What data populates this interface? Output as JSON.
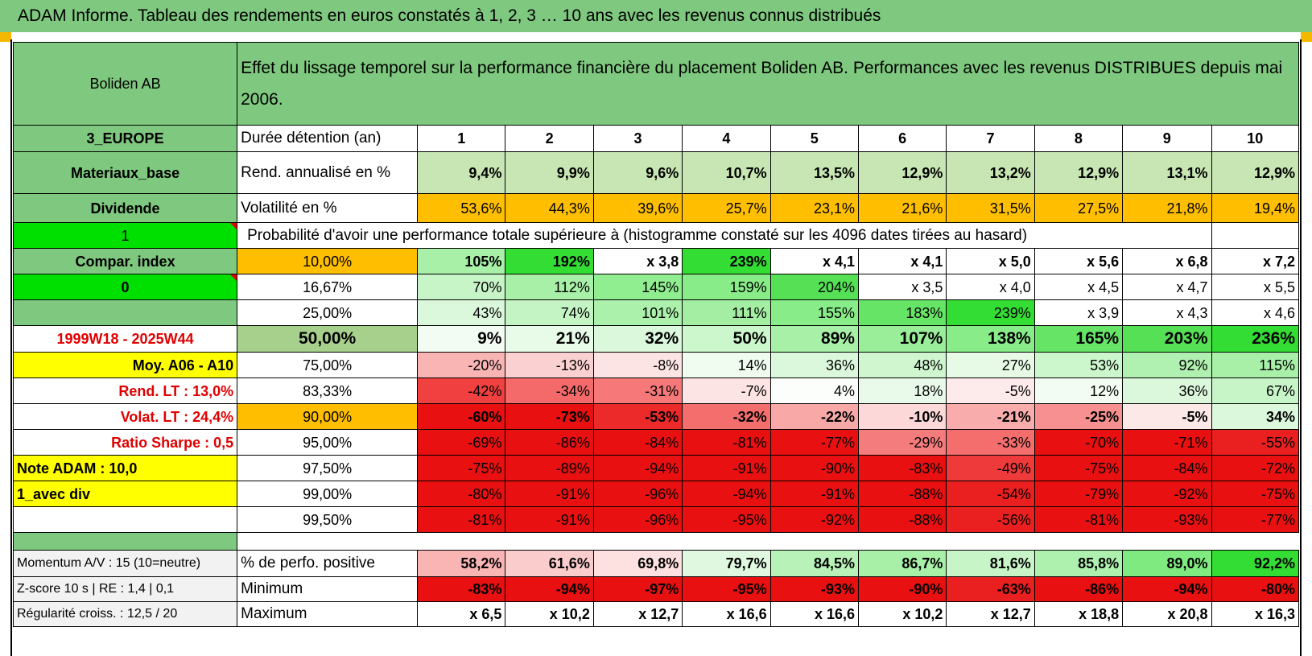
{
  "page": {
    "title": "ADAM Informe. Tableau des rendements en euros constatés à 1, 2, 3 … 10 ans avec les revenus connus distribués"
  },
  "header": {
    "name": "Boliden AB",
    "desc": "Effet du lissage temporel sur la performance financière du placement Boliden AB. Performances avec les revenus DISTRIBUES depuis mai 2006."
  },
  "colors": {
    "header_green": "#7fc87f",
    "bright_green": "#00e000",
    "yellow": "#ffff00",
    "orange": "#ffbf00",
    "red_text": "#e00000"
  },
  "sidebar": {
    "zone": "3_EUROPE",
    "sector": "Materiaux_base",
    "type": "Dividende",
    "v1": "1",
    "compar": "Compar. index",
    "v0": "0",
    "period": "1999W18 - 2025W44",
    "moy": "Moy. A06 - A10",
    "rend_lt": "Rend. LT :    13,0%",
    "volat_lt": "Volat. LT :    24,4%",
    "sharpe": "Ratio Sharpe :    0,5",
    "note": "Note ADAM : 10,0",
    "avec_div": "1_avec div"
  },
  "rows": {
    "duree_label": "Durée détention (an)",
    "years": [
      "1",
      "2",
      "3",
      "4",
      "5",
      "6",
      "7",
      "8",
      "9",
      "10"
    ],
    "rend_label": "Rend. annualisé en %",
    "rend": [
      "9,4%",
      "9,9%",
      "9,6%",
      "10,7%",
      "13,5%",
      "12,9%",
      "13,2%",
      "12,9%",
      "13,1%",
      "12,9%"
    ],
    "vol_label": "Volatilité en %",
    "vol": [
      "53,6%",
      "44,3%",
      "39,6%",
      "25,7%",
      "23,1%",
      "21,6%",
      "31,5%",
      "27,5%",
      "21,8%",
      "19,4%"
    ],
    "proba_title": "Probabilité d'avoir une performance totale supérieure à (histogramme constaté sur les 4096 dates tirées au hasard)"
  },
  "prob_rows": [
    {
      "pct": "10,00%",
      "vals": [
        "105%",
        "192%",
        "x 3,8",
        "239%",
        "x 4,1",
        "x 4,1",
        "x 5,0",
        "x 5,6",
        "x 6,8",
        "x 7,2"
      ],
      "bg": [
        "#a8f0a8",
        "#33dd33",
        "#ffffff",
        "#33dd33",
        "#ffffff",
        "#ffffff",
        "#ffffff",
        "#ffffff",
        "#ffffff",
        "#ffffff"
      ]
    },
    {
      "pct": "16,67%",
      "vals": [
        "70%",
        "112%",
        "145%",
        "159%",
        "204%",
        "x 3,5",
        "x 4,0",
        "x 4,5",
        "x 4,7",
        "x 5,5"
      ],
      "bg": [
        "#c8f5c8",
        "#a8f0a8",
        "#90ee90",
        "#88ec88",
        "#55e055",
        "#ffffff",
        "#ffffff",
        "#ffffff",
        "#ffffff",
        "#ffffff"
      ]
    },
    {
      "pct": "25,00%",
      "vals": [
        "43%",
        "74%",
        "101%",
        "111%",
        "155%",
        "183%",
        "239%",
        "x 3,9",
        "x 4,3",
        "x 4,6"
      ],
      "bg": [
        "#dcf8dc",
        "#c4f4c4",
        "#abf0ab",
        "#a3ee a3",
        "#88ec88",
        "#66e466",
        "#33dd33",
        "#ffffff",
        "#ffffff",
        "#ffffff"
      ]
    },
    {
      "pct": "50,00%",
      "vals": [
        "9%",
        "21%",
        "32%",
        "50%",
        "89%",
        "107%",
        "138%",
        "165%",
        "203%",
        "236%"
      ],
      "bg": [
        "#f2fcf2",
        "#e8fae8",
        "#dcf8dc",
        "#ccf6cc",
        "#a8f0a8",
        "#9aee9a",
        "#88ec88",
        "#66e466",
        "#55e055",
        "#33dd33"
      ]
    },
    {
      "pct": "75,00%",
      "vals": [
        "-20%",
        "-13%",
        "-8%",
        "14%",
        "36%",
        "48%",
        "27%",
        "53%",
        "92%",
        "115%"
      ],
      "bg": [
        "#f9b4b4",
        "#fbd0d0",
        "#fde4e4",
        "#f0fcf0",
        "#dcf8dc",
        "#d0f6d0",
        "#e6fae6",
        "#ccf6cc",
        "#b0f0b0",
        "#a8f0a8"
      ]
    },
    {
      "pct": "83,33%",
      "vals": [
        "-42%",
        "-34%",
        "-31%",
        "-7%",
        "4%",
        "18%",
        "-5%",
        "12%",
        "36%",
        "67%"
      ],
      "bg": [
        "#f04040",
        "#f46a6a",
        "#f67878",
        "#fde4e4",
        "#fbfefb",
        "#eafaea",
        "#fdeaea",
        "#f2fcf2",
        "#dcf8dc",
        "#c8f5c8"
      ]
    },
    {
      "pct": "90,00%",
      "vals": [
        "-60%",
        "-73%",
        "-53%",
        "-32%",
        "-22%",
        "-10%",
        "-21%",
        "-25%",
        "-5%",
        "34%"
      ],
      "bg": [
        "#e81010",
        "#e81010",
        "#ec2a2a",
        "#f56e6e",
        "#f9a8a8",
        "#fdd8d8",
        "#f9acac",
        "#f79090",
        "#fde8e8",
        "#dcf8dc"
      ]
    },
    {
      "pct": "95,00%",
      "vals": [
        "-69%",
        "-86%",
        "-84%",
        "-81%",
        "-77%",
        "-29%",
        "-33%",
        "-70%",
        "-71%",
        "-55%"
      ],
      "bg": [
        "#e81010",
        "#e81010",
        "#e81010",
        "#e81010",
        "#e81010",
        "#f57c7c",
        "#f56e6e",
        "#e81010",
        "#e81010",
        "#ea2020"
      ]
    },
    {
      "pct": "97,50%",
      "vals": [
        "-75%",
        "-89%",
        "-94%",
        "-91%",
        "-90%",
        "-83%",
        "-49%",
        "-75%",
        "-84%",
        "-72%"
      ],
      "bg": [
        "#e81010",
        "#e81010",
        "#e81010",
        "#e81010",
        "#e81010",
        "#e81010",
        "#ee3a3a",
        "#e81010",
        "#e81010",
        "#e81010"
      ]
    },
    {
      "pct": "99,00%",
      "vals": [
        "-80%",
        "-91%",
        "-96%",
        "-94%",
        "-91%",
        "-88%",
        "-54%",
        "-79%",
        "-92%",
        "-75%"
      ],
      "bg": [
        "#e81010",
        "#e81010",
        "#e81010",
        "#e81010",
        "#e81010",
        "#e81010",
        "#ea2020",
        "#e81010",
        "#e81010",
        "#e81010"
      ]
    },
    {
      "pct": "99,50%",
      "vals": [
        "-81%",
        "-91%",
        "-96%",
        "-95%",
        "-92%",
        "-88%",
        "-56%",
        "-81%",
        "-93%",
        "-77%"
      ],
      "bg": [
        "#e81010",
        "#e81010",
        "#e81010",
        "#e81010",
        "#e81010",
        "#e81010",
        "#ea2020",
        "#e81010",
        "#e81010",
        "#e81010"
      ]
    }
  ],
  "footer": {
    "momentum": "Momentum A/V : 15 (10=neutre)",
    "zscore": "Z-score 10 s | RE : 1,4 | 0,1",
    "regularite": "Régularité croiss. : 12,5 / 20",
    "pos_label": "% de perfo. positive",
    "pos": [
      "58,2%",
      "61,6%",
      "69,8%",
      "79,7%",
      "84,5%",
      "86,7%",
      "81,6%",
      "85,8%",
      "89,0%",
      "92,2%"
    ],
    "pos_bg": [
      "#f9b4b4",
      "#fbcccc",
      "#fde0e0",
      "#e0f8e0",
      "#b8f2b8",
      "#a8f0a8",
      "#c8f5c8",
      "#aef0ae",
      "#7fea7f",
      "#33dd33"
    ],
    "min_label": "Minimum",
    "min": [
      "-83%",
      "-94%",
      "-97%",
      "-95%",
      "-93%",
      "-90%",
      "-63%",
      "-86%",
      "-94%",
      "-80%"
    ],
    "max_label": "Maximum",
    "max": [
      "x 6,5",
      "x 10,2",
      "x 12,7",
      "x 16,6",
      "x 16,6",
      "x 10,2",
      "x 12,7",
      "x 18,8",
      "x 20,8",
      "x 16,3"
    ]
  }
}
